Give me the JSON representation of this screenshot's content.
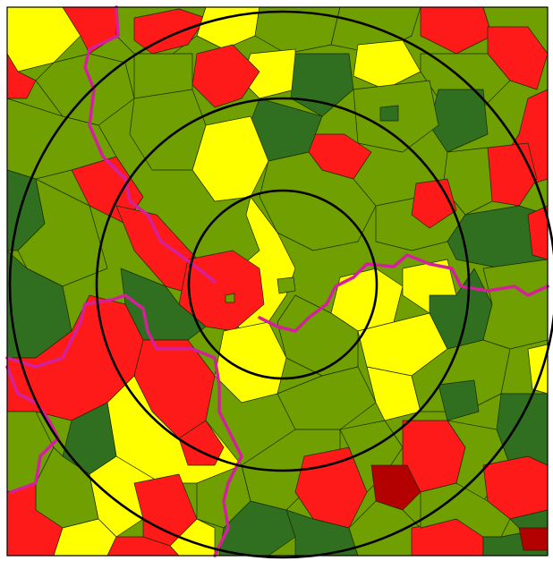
{
  "map": {
    "colors": {
      "background": "#ffffff",
      "red": "#ff1a1a",
      "dark_red": "#b30000",
      "yellow": "#ffff00",
      "light_green": "#6f9f00",
      "dark_green": "#2f6f1f",
      "outline": "#1a2a00",
      "border_magenta": "#d4209c",
      "rings": "#000000"
    },
    "concentric_rings": 3,
    "region_color_classes": [
      "red",
      "dark_red",
      "yellow",
      "light_green",
      "dark_green"
    ],
    "has_admin_boundary": true
  }
}
